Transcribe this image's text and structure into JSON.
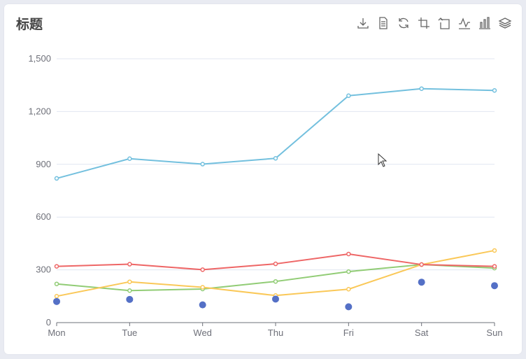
{
  "title": "标题",
  "toolbox": [
    "download-icon",
    "data-view-icon",
    "refresh-icon",
    "crop-icon",
    "restore-icon",
    "line-chart-icon",
    "bar-chart-icon",
    "stack-icon"
  ],
  "chart_data": {
    "type": "line",
    "title": "标题",
    "categories": [
      "Mon",
      "Tue",
      "Wed",
      "Thu",
      "Fri",
      "Sat",
      "Sun"
    ],
    "ylim": [
      0,
      1500
    ],
    "yticks": [
      0,
      300,
      600,
      900,
      1200,
      1500
    ],
    "ytick_labels": [
      "0",
      "300",
      "600",
      "900",
      "1,200",
      "1,500"
    ],
    "grid": true,
    "legend": "none",
    "series": [
      {
        "type": "line",
        "color": "#91cc75",
        "values": [
          220,
          182,
          191,
          234,
          290,
          330,
          310
        ]
      },
      {
        "type": "line",
        "color": "#fac858",
        "values": [
          150,
          232,
          201,
          154,
          190,
          330,
          410
        ]
      },
      {
        "type": "line",
        "color": "#ee6666",
        "values": [
          320,
          332,
          301,
          334,
          390,
          330,
          320
        ]
      },
      {
        "type": "line",
        "color": "#73c0de",
        "values": [
          820,
          932,
          901,
          934,
          1290,
          1330,
          1320
        ]
      },
      {
        "type": "scatter",
        "color": "#5470c6",
        "values": [
          120,
          132,
          101,
          134,
          90,
          230,
          210
        ]
      }
    ]
  }
}
